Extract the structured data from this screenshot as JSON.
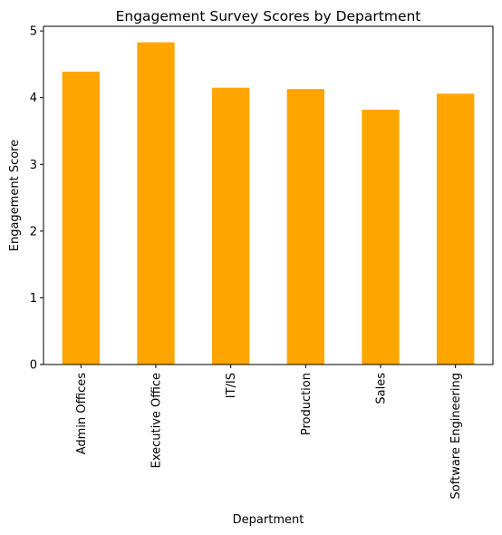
{
  "chart_data": {
    "type": "bar",
    "title": "Engagement Survey Scores by Department",
    "xlabel": "Department",
    "ylabel": "Engagement Score",
    "categories": [
      "Admin Offices",
      "Executive Office",
      "IT/IS",
      "Production",
      "Sales",
      "Software Engineering"
    ],
    "values": [
      4.39,
      4.83,
      4.15,
      4.13,
      3.82,
      4.06
    ],
    "ylim": [
      0,
      5.07
    ],
    "yticks": [
      "0",
      "1",
      "2",
      "3",
      "4",
      "5"
    ],
    "bar_color": "#FFA500",
    "grid": false,
    "legend": "none"
  }
}
